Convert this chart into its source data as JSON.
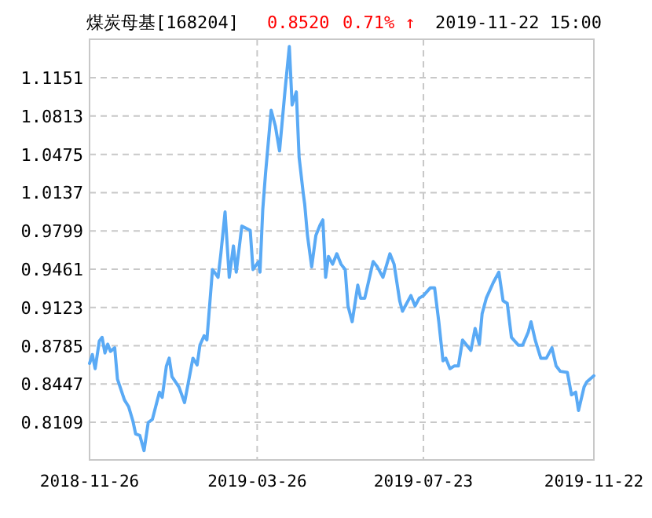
{
  "chart_data": {
    "type": "line",
    "title": "煤炭母基[168204]",
    "annotations": [
      "0.8520",
      "0.71% ↑",
      "2019-11-22 15:00"
    ],
    "x": [
      "2018-11-26",
      "2018-11-28",
      "2018-11-30",
      "2018-12-03",
      "2018-12-05",
      "2018-12-07",
      "2018-12-09",
      "2018-12-11",
      "2018-12-14",
      "2018-12-16",
      "2018-12-21",
      "2018-12-24",
      "2018-12-27",
      "2018-12-29",
      "2019-01-01",
      "2019-01-04",
      "2019-01-07",
      "2019-01-10",
      "2019-01-15",
      "2019-01-17",
      "2019-01-20",
      "2019-01-22",
      "2019-01-24",
      "2019-01-29",
      "2019-02-02",
      "2019-02-08",
      "2019-02-11",
      "2019-02-13",
      "2019-02-16",
      "2019-02-18",
      "2019-02-22",
      "2019-02-26",
      "2019-02-28",
      "2019-03-03",
      "2019-03-06",
      "2019-03-09",
      "2019-03-11",
      "2019-03-15",
      "2019-03-21",
      "2019-03-23",
      "2019-03-27",
      "2019-03-28",
      "2019-03-30",
      "2019-04-01",
      "2019-04-05",
      "2019-04-08",
      "2019-04-11",
      "2019-04-15",
      "2019-04-18",
      "2019-04-20",
      "2019-04-23",
      "2019-04-25",
      "2019-04-28",
      "2019-04-29",
      "2019-05-01",
      "2019-05-04",
      "2019-05-07",
      "2019-05-10",
      "2019-05-12",
      "2019-05-14",
      "2019-05-16",
      "2019-05-19",
      "2019-05-22",
      "2019-05-25",
      "2019-05-28",
      "2019-05-30",
      "2019-06-02",
      "2019-06-06",
      "2019-06-08",
      "2019-06-11",
      "2019-06-17",
      "2019-06-20",
      "2019-06-24",
      "2019-06-29",
      "2019-07-02",
      "2019-07-06",
      "2019-07-08",
      "2019-07-14",
      "2019-07-17",
      "2019-07-20",
      "2019-07-23",
      "2019-07-28",
      "2019-07-31",
      "2019-08-03",
      "2019-08-06",
      "2019-08-08",
      "2019-08-11",
      "2019-08-14",
      "2019-08-17",
      "2019-08-20",
      "2019-08-26",
      "2019-08-29",
      "2019-09-01",
      "2019-09-03",
      "2019-09-06",
      "2019-09-11",
      "2019-09-15",
      "2019-09-18",
      "2019-09-21",
      "2019-09-24",
      "2019-09-29",
      "2019-10-02",
      "2019-10-06",
      "2019-10-08",
      "2019-10-11",
      "2019-10-15",
      "2019-10-19",
      "2019-10-23",
      "2019-10-26",
      "2019-10-29",
      "2019-11-03",
      "2019-11-06",
      "2019-11-09",
      "2019-11-11",
      "2019-11-15",
      "2019-11-17",
      "2019-11-22"
    ],
    "series": [
      {
        "color": "#5aaaf5",
        "values": [
          0.8629,
          0.8707,
          0.8583,
          0.8827,
          0.8859,
          0.8721,
          0.8799,
          0.8735,
          0.8767,
          0.849,
          0.8306,
          0.8246,
          0.8122,
          0.8006,
          0.7992,
          0.7859,
          0.8108,
          0.8135,
          0.8375,
          0.8329,
          0.8606,
          0.8675,
          0.8513,
          0.8421,
          0.8283,
          0.8675,
          0.8615,
          0.879,
          0.8873,
          0.8836,
          0.9458,
          0.9389,
          0.9597,
          0.9966,
          0.9389,
          0.9666,
          0.9435,
          0.9841,
          0.9804,
          0.9458,
          0.9528,
          0.9435,
          0.9989,
          1.0311,
          1.0864,
          1.0726,
          1.0505,
          1.1049,
          1.1427,
          1.0911,
          1.1026,
          1.045,
          1.0127,
          1.0035,
          0.9758,
          0.9481,
          0.9758,
          0.985,
          0.9896,
          0.9389,
          0.9574,
          0.9505,
          0.9597,
          0.9505,
          0.9458,
          0.9136,
          0.8997,
          0.932,
          0.9205,
          0.9205,
          0.9528,
          0.9481,
          0.9389,
          0.9597,
          0.9505,
          0.9182,
          0.909,
          0.9228,
          0.9136,
          0.9205,
          0.9228,
          0.9297,
          0.9297,
          0.8997,
          0.8652,
          0.8675,
          0.8583,
          0.8606,
          0.8606,
          0.8836,
          0.8744,
          0.8938,
          0.8799,
          0.9067,
          0.9205,
          0.9343,
          0.9435,
          0.9182,
          0.9159,
          0.8859,
          0.879,
          0.879,
          0.8905,
          0.8997,
          0.8836,
          0.8675,
          0.8675,
          0.8767,
          0.8606,
          0.8559,
          0.855,
          0.8352,
          0.8375,
          0.8214,
          0.8421,
          0.8467,
          0.852
        ]
      }
    ],
    "xlim": [
      "2018-11-26",
      "2019-11-22"
    ],
    "xticks": [
      "2018-11-26",
      "2019-03-26",
      "2019-07-23",
      "2019-11-22"
    ],
    "ylim": [
      0.7777,
      1.1491
    ],
    "yticks": [
      0.8109,
      0.8447,
      0.8785,
      0.9123,
      0.9461,
      0.9799,
      1.0137,
      1.0475,
      1.0813,
      1.1151
    ],
    "grid": true,
    "marker": "none",
    "line_style": "solid"
  }
}
